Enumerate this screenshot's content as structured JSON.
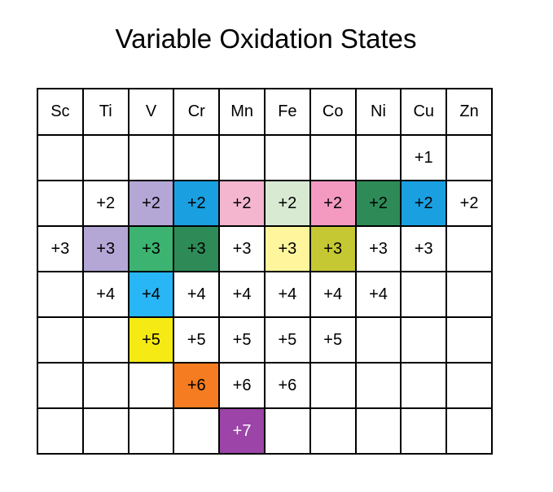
{
  "title": "Variable Oxidation States",
  "elements": [
    "Sc",
    "Ti",
    "V",
    "Cr",
    "Mn",
    "Fe",
    "Co",
    "Ni",
    "Cu",
    "Zn"
  ],
  "rows": [
    [
      "",
      "",
      "",
      "",
      "",
      "",
      "",
      "",
      "+1",
      ""
    ],
    [
      "",
      "+2",
      "+2",
      "+2",
      "+2",
      "+2",
      "+2",
      "+2",
      "+2",
      "+2"
    ],
    [
      "+3",
      "+3",
      "+3",
      "+3",
      "+3",
      "+3",
      "+3",
      "+3",
      "+3",
      ""
    ],
    [
      "",
      "+4",
      "+4",
      "+4",
      "+4",
      "+4",
      "+4",
      "+4",
      "",
      ""
    ],
    [
      "",
      "",
      "+5",
      "+5",
      "+5",
      "+5",
      "+5",
      "",
      "",
      ""
    ],
    [
      "",
      "",
      "",
      "+6",
      "+6",
      "+6",
      "",
      "",
      "",
      ""
    ],
    [
      "",
      "",
      "",
      "",
      "+7",
      "",
      "",
      "",
      "",
      ""
    ]
  ],
  "colors": [
    [
      null,
      null,
      null,
      null,
      null,
      null,
      null,
      null,
      null,
      null
    ],
    [
      null,
      null,
      "#b4a7d6",
      "#1aa0e0",
      "#f4b6cf",
      "#d9ead3",
      "#f49ac1",
      "#2e8b57",
      "#1aa0e0",
      null
    ],
    [
      null,
      "#b4a7d6",
      "#3cb371",
      "#2e8b57",
      null,
      "#fff59d",
      "#c5c832",
      null,
      null,
      null
    ],
    [
      null,
      null,
      "#29b6f6",
      null,
      null,
      null,
      null,
      null,
      null,
      null
    ],
    [
      null,
      null,
      "#f5ea14",
      null,
      null,
      null,
      null,
      null,
      null,
      null
    ],
    [
      null,
      null,
      null,
      "#f57c20",
      null,
      null,
      null,
      null,
      null,
      null
    ],
    [
      null,
      null,
      null,
      null,
      "#9c44a8",
      null,
      null,
      null,
      null,
      null
    ]
  ],
  "white_text": [
    [
      6,
      4
    ]
  ]
}
